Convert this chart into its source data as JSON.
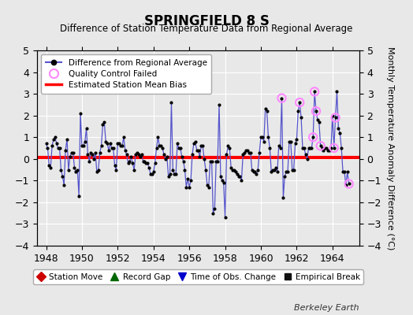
{
  "title": "SPRINGFIELD 8 S",
  "subtitle": "Difference of Station Temperature Data from Regional Average",
  "ylabel": "Monthly Temperature Anomaly Difference (°C)",
  "xlabel_bottom": "Berkeley Earth",
  "bias_level": 0.05,
  "ylim": [
    -4,
    5
  ],
  "xlim": [
    1947.5,
    1965.5
  ],
  "xticks": [
    1948,
    1950,
    1952,
    1954,
    1956,
    1958,
    1960,
    1962,
    1964
  ],
  "yticks": [
    -4,
    -3,
    -2,
    -1,
    0,
    1,
    2,
    3,
    4,
    5
  ],
  "bg_color": "#e8e8e8",
  "grid_color": "#ffffff",
  "line_color": "#5555cc",
  "line_fill_color": "#aaaaff",
  "dot_color": "#000000",
  "bias_color": "#ff0000",
  "qc_color": "#ff88ff",
  "data": [
    [
      1948.0,
      0.7
    ],
    [
      1948.083,
      0.5
    ],
    [
      1948.167,
      -0.3
    ],
    [
      1948.25,
      -0.4
    ],
    [
      1948.333,
      0.6
    ],
    [
      1948.417,
      0.9
    ],
    [
      1948.5,
      1.0
    ],
    [
      1948.583,
      0.7
    ],
    [
      1948.667,
      0.5
    ],
    [
      1948.75,
      0.5
    ],
    [
      1948.833,
      -0.5
    ],
    [
      1948.917,
      -0.8
    ],
    [
      1949.0,
      -1.2
    ],
    [
      1949.083,
      0.4
    ],
    [
      1949.167,
      0.9
    ],
    [
      1949.25,
      -0.5
    ],
    [
      1949.333,
      0.1
    ],
    [
      1949.417,
      0.3
    ],
    [
      1949.5,
      0.3
    ],
    [
      1949.583,
      -0.4
    ],
    [
      1949.667,
      -0.6
    ],
    [
      1949.75,
      -0.5
    ],
    [
      1949.833,
      -1.7
    ],
    [
      1949.917,
      2.1
    ],
    [
      1950.0,
      0.6
    ],
    [
      1950.083,
      0.6
    ],
    [
      1950.167,
      0.8
    ],
    [
      1950.25,
      1.4
    ],
    [
      1950.333,
      0.2
    ],
    [
      1950.417,
      -0.1
    ],
    [
      1950.5,
      0.3
    ],
    [
      1950.583,
      0.2
    ],
    [
      1950.667,
      0.0
    ],
    [
      1950.75,
      0.3
    ],
    [
      1950.833,
      -0.6
    ],
    [
      1950.917,
      -0.5
    ],
    [
      1951.0,
      0.3
    ],
    [
      1951.083,
      0.6
    ],
    [
      1951.167,
      1.6
    ],
    [
      1951.25,
      1.7
    ],
    [
      1951.333,
      0.8
    ],
    [
      1951.417,
      0.7
    ],
    [
      1951.5,
      0.4
    ],
    [
      1951.583,
      0.7
    ],
    [
      1951.667,
      0.5
    ],
    [
      1951.75,
      0.5
    ],
    [
      1951.833,
      -0.3
    ],
    [
      1951.917,
      -0.5
    ],
    [
      1952.0,
      0.7
    ],
    [
      1952.083,
      0.7
    ],
    [
      1952.167,
      0.6
    ],
    [
      1952.25,
      0.6
    ],
    [
      1952.333,
      1.0
    ],
    [
      1952.417,
      0.4
    ],
    [
      1952.5,
      0.2
    ],
    [
      1952.583,
      -0.2
    ],
    [
      1952.667,
      -0.1
    ],
    [
      1952.75,
      0.1
    ],
    [
      1952.833,
      -0.2
    ],
    [
      1952.917,
      -0.5
    ],
    [
      1953.0,
      0.2
    ],
    [
      1953.083,
      0.3
    ],
    [
      1953.167,
      0.2
    ],
    [
      1953.25,
      0.1
    ],
    [
      1953.333,
      0.2
    ],
    [
      1953.417,
      -0.1
    ],
    [
      1953.5,
      -0.1
    ],
    [
      1953.583,
      -0.2
    ],
    [
      1953.667,
      -0.2
    ],
    [
      1953.75,
      -0.4
    ],
    [
      1953.833,
      -0.7
    ],
    [
      1953.917,
      -0.7
    ],
    [
      1954.0,
      -0.6
    ],
    [
      1954.083,
      -0.2
    ],
    [
      1954.167,
      0.5
    ],
    [
      1954.25,
      1.0
    ],
    [
      1954.333,
      0.6
    ],
    [
      1954.417,
      0.6
    ],
    [
      1954.5,
      0.5
    ],
    [
      1954.583,
      0.2
    ],
    [
      1954.667,
      0.0
    ],
    [
      1954.75,
      0.1
    ],
    [
      1954.833,
      -0.8
    ],
    [
      1954.917,
      -0.7
    ],
    [
      1955.0,
      2.6
    ],
    [
      1955.083,
      -0.5
    ],
    [
      1955.167,
      -0.7
    ],
    [
      1955.25,
      -0.7
    ],
    [
      1955.333,
      0.7
    ],
    [
      1955.417,
      0.5
    ],
    [
      1955.5,
      0.5
    ],
    [
      1955.583,
      0.1
    ],
    [
      1955.667,
      -0.1
    ],
    [
      1955.75,
      -0.5
    ],
    [
      1955.833,
      -1.3
    ],
    [
      1955.917,
      -0.9
    ],
    [
      1956.0,
      -1.3
    ],
    [
      1956.083,
      -1.0
    ],
    [
      1956.167,
      0.2
    ],
    [
      1956.25,
      0.7
    ],
    [
      1956.333,
      0.8
    ],
    [
      1956.417,
      0.4
    ],
    [
      1956.5,
      0.4
    ],
    [
      1956.583,
      0.1
    ],
    [
      1956.667,
      0.6
    ],
    [
      1956.75,
      0.6
    ],
    [
      1956.833,
      0.0
    ],
    [
      1956.917,
      -0.5
    ],
    [
      1957.0,
      -1.2
    ],
    [
      1957.083,
      -1.3
    ],
    [
      1957.167,
      -0.1
    ],
    [
      1957.25,
      -0.1
    ],
    [
      1957.333,
      -2.5
    ],
    [
      1957.417,
      -2.3
    ],
    [
      1957.5,
      -0.1
    ],
    [
      1957.583,
      -0.1
    ],
    [
      1957.667,
      2.5
    ],
    [
      1957.75,
      -0.8
    ],
    [
      1957.833,
      -1.0
    ],
    [
      1957.917,
      -1.1
    ],
    [
      1958.0,
      -2.7
    ],
    [
      1958.083,
      0.2
    ],
    [
      1958.167,
      0.6
    ],
    [
      1958.25,
      0.5
    ],
    [
      1958.333,
      -0.4
    ],
    [
      1958.417,
      -0.5
    ],
    [
      1958.5,
      -0.5
    ],
    [
      1958.583,
      -0.6
    ],
    [
      1958.667,
      -0.7
    ],
    [
      1958.75,
      -0.8
    ],
    [
      1958.833,
      -0.8
    ],
    [
      1958.917,
      -1.0
    ],
    [
      1959.0,
      0.2
    ],
    [
      1959.083,
      0.3
    ],
    [
      1959.167,
      0.4
    ],
    [
      1959.25,
      0.4
    ],
    [
      1959.333,
      0.3
    ],
    [
      1959.417,
      0.3
    ],
    [
      1959.5,
      -0.5
    ],
    [
      1959.583,
      -0.6
    ],
    [
      1959.667,
      -0.6
    ],
    [
      1959.75,
      -0.7
    ],
    [
      1959.833,
      -0.5
    ],
    [
      1959.917,
      0.3
    ],
    [
      1960.0,
      1.0
    ],
    [
      1960.083,
      1.0
    ],
    [
      1960.167,
      0.8
    ],
    [
      1960.25,
      2.3
    ],
    [
      1960.333,
      2.2
    ],
    [
      1960.417,
      1.0
    ],
    [
      1960.5,
      0.5
    ],
    [
      1960.583,
      -0.6
    ],
    [
      1960.667,
      -0.5
    ],
    [
      1960.75,
      -0.5
    ],
    [
      1960.833,
      -0.4
    ],
    [
      1960.917,
      -0.6
    ],
    [
      1961.0,
      0.6
    ],
    [
      1961.083,
      0.5
    ],
    [
      1961.167,
      2.8
    ],
    [
      1961.25,
      -1.8
    ],
    [
      1961.333,
      -0.8
    ],
    [
      1961.417,
      -0.6
    ],
    [
      1961.5,
      -0.6
    ],
    [
      1961.583,
      0.8
    ],
    [
      1961.667,
      0.8
    ],
    [
      1961.75,
      -0.5
    ],
    [
      1961.833,
      -0.5
    ],
    [
      1961.917,
      0.7
    ],
    [
      1962.0,
      0.9
    ],
    [
      1962.083,
      2.2
    ],
    [
      1962.167,
      2.6
    ],
    [
      1962.25,
      1.9
    ],
    [
      1962.333,
      0.5
    ],
    [
      1962.417,
      0.5
    ],
    [
      1962.5,
      0.2
    ],
    [
      1962.583,
      0.0
    ],
    [
      1962.667,
      0.5
    ],
    [
      1962.75,
      0.5
    ],
    [
      1962.833,
      0.5
    ],
    [
      1962.917,
      1.0
    ],
    [
      1963.0,
      3.1
    ],
    [
      1963.083,
      2.2
    ],
    [
      1963.167,
      1.8
    ],
    [
      1963.25,
      1.7
    ],
    [
      1963.333,
      0.6
    ],
    [
      1963.417,
      0.5
    ],
    [
      1963.5,
      0.4
    ],
    [
      1963.583,
      0.5
    ],
    [
      1963.667,
      0.5
    ],
    [
      1963.75,
      0.4
    ],
    [
      1963.833,
      0.4
    ],
    [
      1963.917,
      0.5
    ],
    [
      1964.0,
      2.0
    ],
    [
      1964.083,
      0.5
    ],
    [
      1964.167,
      1.9
    ],
    [
      1964.25,
      3.1
    ],
    [
      1964.333,
      1.4
    ],
    [
      1964.417,
      1.2
    ],
    [
      1964.5,
      0.5
    ],
    [
      1964.583,
      -0.6
    ],
    [
      1964.667,
      -0.6
    ],
    [
      1964.75,
      -1.2
    ],
    [
      1964.833,
      -0.6
    ],
    [
      1964.917,
      -1.15
    ]
  ],
  "qc_failed": [
    [
      1961.167,
      2.8
    ],
    [
      1962.167,
      2.6
    ],
    [
      1962.917,
      1.0
    ],
    [
      1963.0,
      3.1
    ],
    [
      1963.083,
      2.2
    ],
    [
      1963.333,
      0.6
    ],
    [
      1964.083,
      0.5
    ],
    [
      1964.167,
      1.9
    ],
    [
      1964.917,
      -1.15
    ]
  ]
}
